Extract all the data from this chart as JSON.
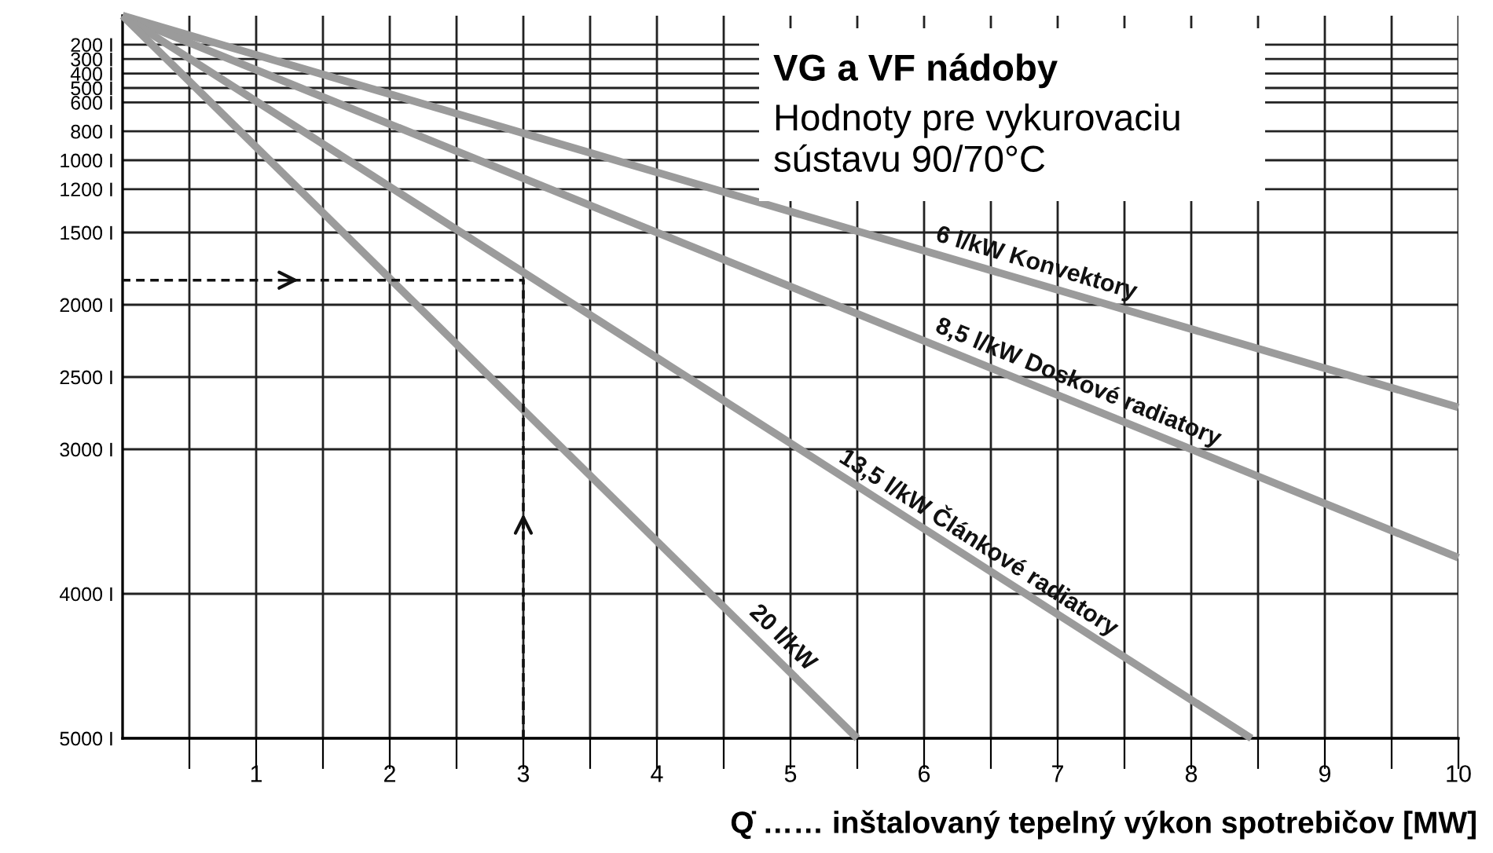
{
  "chart_data": {
    "type": "line",
    "title": "VG a VF nádoby",
    "subtitle": "Hodnoty pre vykurovaciu\nsústavu 90/70°C",
    "xlabel": "Q̇ …… inštalovaný tepelný výkon spotrebičov [MW]",
    "series": [
      {
        "color": "#9b9b9b",
        "x": [
          0,
          10
        ],
        "values": [
          0,
          2710
        ]
      },
      {
        "color": "#9b9b9b",
        "x": [
          0,
          10
        ],
        "values": [
          0,
          3750
        ]
      },
      {
        "color": "#9b9b9b",
        "x": [
          0,
          8.45
        ],
        "values": [
          0,
          5000
        ]
      },
      {
        "color": "#9b9b9b",
        "x": [
          0,
          5.5
        ],
        "values": [
          0,
          5000
        ]
      },
      {
        "color": "#111111",
        "x": [
          3,
          3,
          0
        ],
        "values": [
          5000,
          1830,
          1830
        ],
        "line_style": "dashed"
      }
    ],
    "annotations": [
      "6 l/kW Konvektory",
      "8,5 l/kW Doskové radiatory",
      "13,5 l/kW Článkové radiatory",
      "20 l/kW"
    ],
    "xlim": [
      0,
      10
    ],
    "ylim": [
      5000,
      0
    ],
    "xticks": [
      {
        "value": 0.5,
        "label": null
      },
      1,
      {
        "value": 1.5,
        "label": null
      },
      2,
      {
        "value": 2.5,
        "label": null
      },
      3,
      {
        "value": 3.5,
        "label": null
      },
      4,
      {
        "value": 4.5,
        "label": null
      },
      5,
      {
        "value": 5.5,
        "label": null
      },
      6,
      {
        "value": 6.5,
        "label": null
      },
      7,
      {
        "value": 7.5,
        "label": null
      },
      8,
      {
        "value": 8.5,
        "label": null
      },
      9,
      {
        "value": 9.5,
        "label": null
      },
      10
    ],
    "yticks": [
      {
        "value": 200,
        "label": "200 I"
      },
      {
        "value": 300,
        "label": "300 I"
      },
      {
        "value": 400,
        "label": "400 I"
      },
      {
        "value": 500,
        "label": "500 I"
      },
      {
        "value": 600,
        "label": "600 I"
      },
      {
        "value": 800,
        "label": "800 I"
      },
      {
        "value": 1000,
        "label": "1000 I"
      },
      {
        "value": 1200,
        "label": "1200 I"
      },
      {
        "value": 1500,
        "label": "1500 I"
      },
      {
        "value": 2000,
        "label": "2000 I"
      },
      {
        "value": 2500,
        "label": "2500 I"
      },
      {
        "value": 3000,
        "label": "3000 I"
      },
      {
        "value": 4000,
        "label": "4000 I"
      },
      {
        "value": 5000,
        "label": "5000 I"
      }
    ],
    "grid": true,
    "line_style": "solid",
    "marker": "none",
    "legend": false
  }
}
